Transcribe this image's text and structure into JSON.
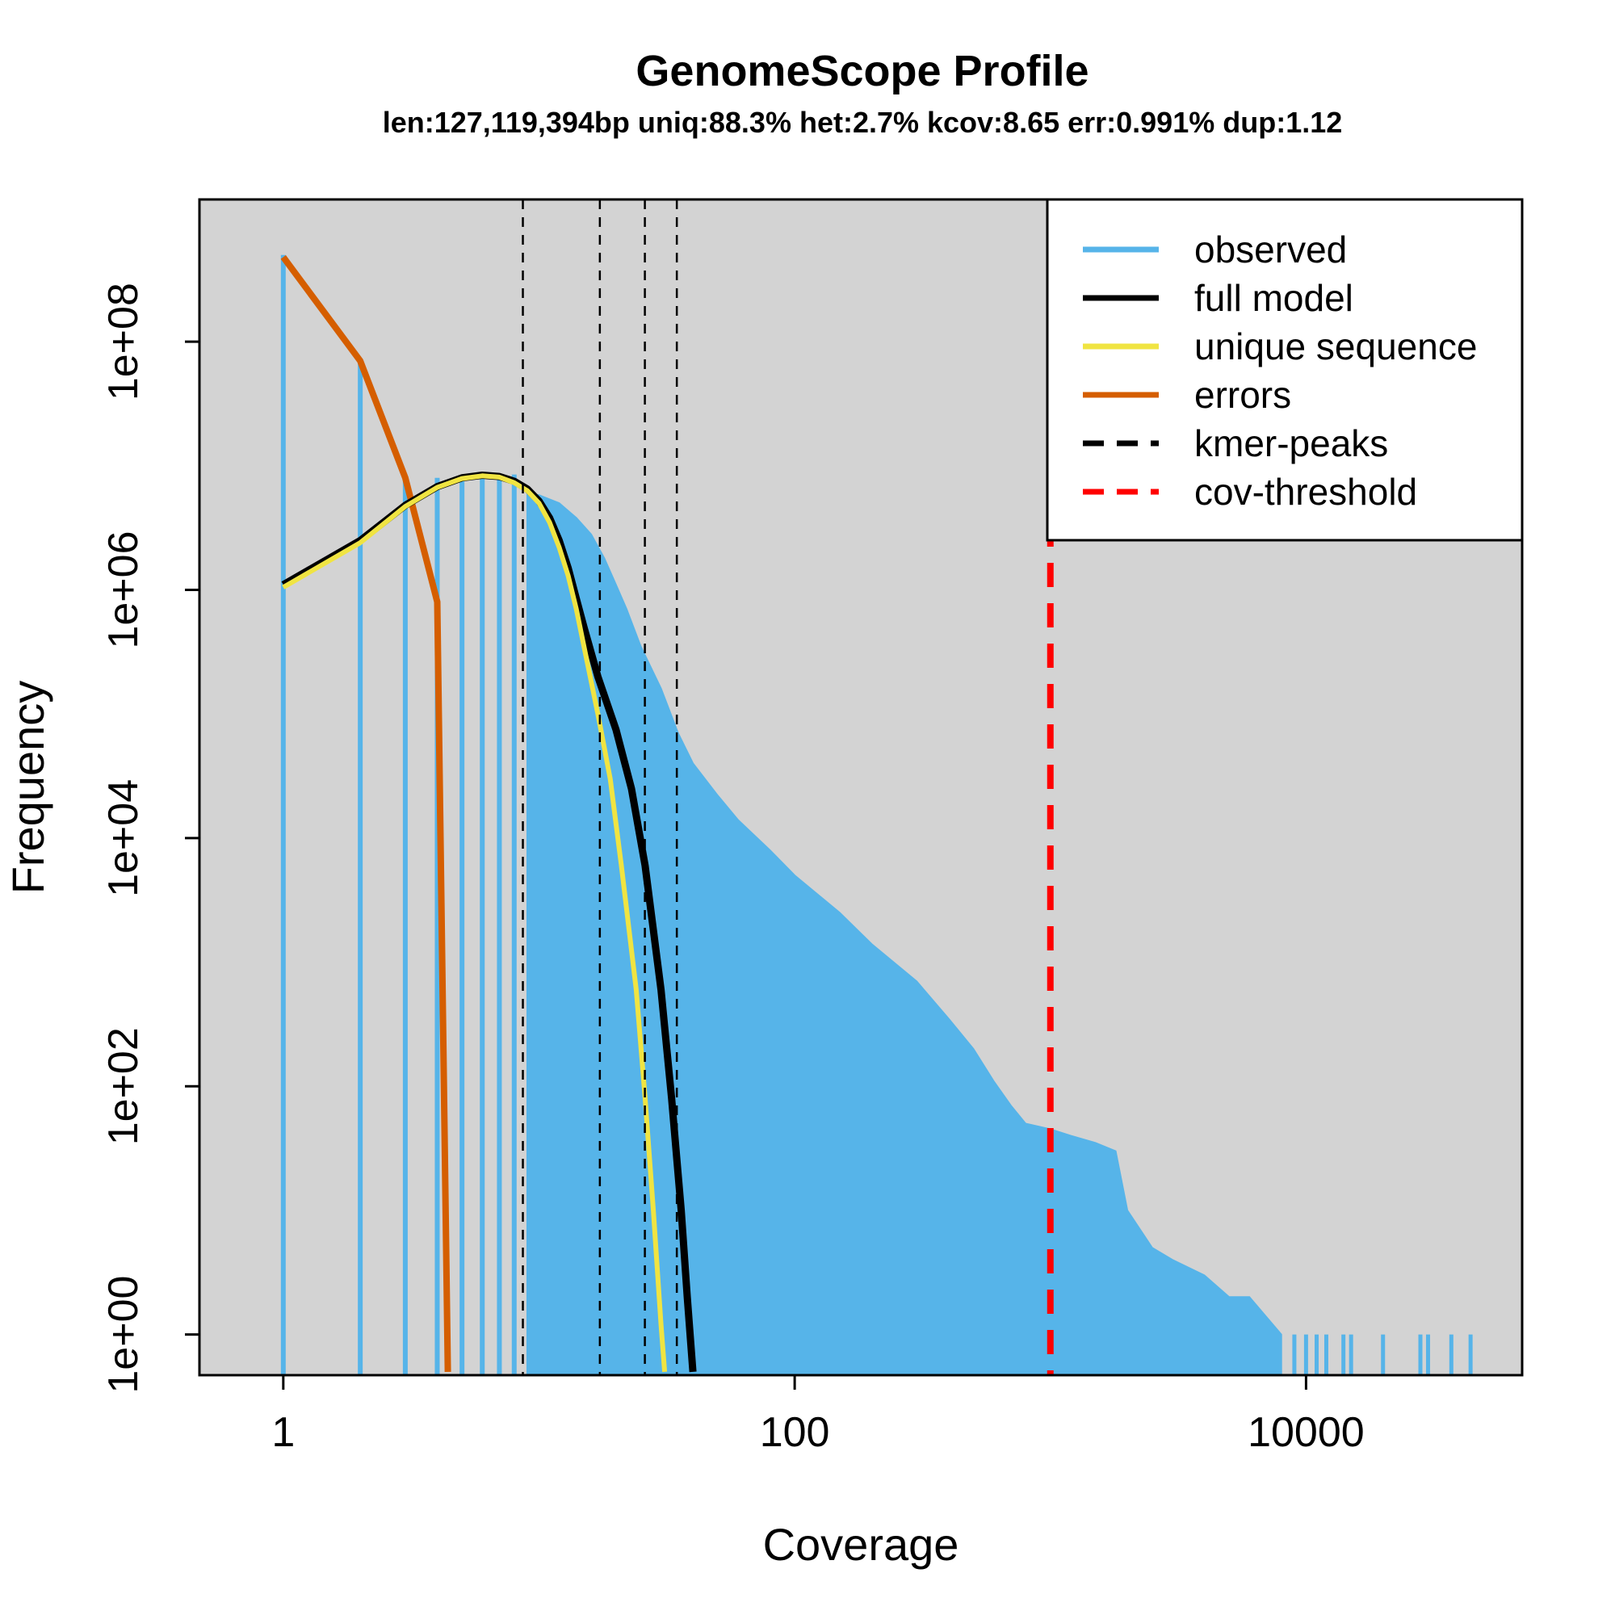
{
  "chart_data": {
    "type": "bar",
    "title": "GenomeScope Profile",
    "subtitle": "len:127,119,394bp uniq:88.3% het:2.7% kcov:8.65 err:0.991% dup:1.12",
    "xlabel": "Coverage",
    "ylabel": "Frequency",
    "x_scale": "log",
    "y_scale": "log",
    "xlim": [
      0.47,
      70000
    ],
    "ylim": [
      0.47,
      1400000000
    ],
    "x_ticks": [
      1,
      100,
      10000
    ],
    "x_tick_labels": [
      "1",
      "100",
      "10000"
    ],
    "y_ticks": [
      1,
      100,
      10000,
      1000000,
      100000000
    ],
    "y_tick_labels": [
      "1e+00",
      "1e+02",
      "1e+04",
      "1e+06",
      "1e+08"
    ],
    "background": "#d3d3d3",
    "grid": false,
    "legend_position": "top-right",
    "colors": {
      "observed": "#56b4e9",
      "full_model": "#000000",
      "unique_sequence": "#f0e442",
      "errors": "#d55e00",
      "kmer_peaks": "#000000",
      "cov_threshold": "#ff0000"
    },
    "legend": [
      {
        "key": "observed",
        "label": "observed",
        "style": "solid"
      },
      {
        "key": "full_model",
        "label": "full model",
        "style": "solid"
      },
      {
        "key": "unique_sequence",
        "label": "unique sequence",
        "style": "solid"
      },
      {
        "key": "errors",
        "label": "errors",
        "style": "solid"
      },
      {
        "key": "kmer_peaks",
        "label": "kmer-peaks",
        "style": "dashed"
      },
      {
        "key": "cov_threshold",
        "label": "cov-threshold",
        "style": "dashed"
      }
    ],
    "observed_profile": [
      [
        9,
        6000000
      ],
      [
        10,
        5800000
      ],
      [
        12,
        5000000
      ],
      [
        14,
        3800000
      ],
      [
        16,
        2800000
      ],
      [
        18,
        1800000
      ],
      [
        20,
        1100000
      ],
      [
        22,
        700000
      ],
      [
        25,
        350000
      ],
      [
        30,
        160000
      ],
      [
        35,
        70000
      ],
      [
        40,
        40000
      ],
      [
        50,
        22000
      ],
      [
        60,
        14000
      ],
      [
        80,
        8000
      ],
      [
        100,
        5000
      ],
      [
        150,
        2500
      ],
      [
        200,
        1400
      ],
      [
        300,
        700
      ],
      [
        400,
        350
      ],
      [
        500,
        200
      ],
      [
        600,
        110
      ],
      [
        700,
        70
      ],
      [
        800,
        50
      ],
      [
        1000,
        45
      ],
      [
        1200,
        40
      ],
      [
        1500,
        35
      ],
      [
        1800,
        30
      ],
      [
        2000,
        10
      ],
      [
        2500,
        5
      ],
      [
        3000,
        4
      ],
      [
        4000,
        3
      ],
      [
        5000,
        2
      ],
      [
        6000,
        2
      ],
      [
        8000,
        1
      ]
    ],
    "observed_low_bars": [
      [
        1,
        500000000
      ],
      [
        2,
        70000000
      ],
      [
        3,
        8000000
      ],
      [
        4,
        8000000
      ],
      [
        5,
        7500000
      ],
      [
        6,
        8000000
      ],
      [
        7,
        8500000
      ],
      [
        8,
        8500000
      ]
    ],
    "observed_sparse_bars": [
      [
        9000,
        1
      ],
      [
        10000,
        1
      ],
      [
        11000,
        1
      ],
      [
        12000,
        1
      ],
      [
        14000,
        1
      ],
      [
        15000,
        1
      ],
      [
        20000,
        1
      ],
      [
        28000,
        1
      ],
      [
        30000,
        1
      ],
      [
        37000,
        1
      ],
      [
        44000,
        1
      ]
    ],
    "full_model": [
      [
        1,
        1100000
      ],
      [
        2,
        2500000
      ],
      [
        3,
        4800000
      ],
      [
        4,
        6800000
      ],
      [
        5,
        8000000
      ],
      [
        6,
        8400000
      ],
      [
        7,
        8200000
      ],
      [
        8,
        7500000
      ],
      [
        9,
        6500000
      ],
      [
        10,
        5200000
      ],
      [
        11,
        3800000
      ],
      [
        12,
        2500000
      ],
      [
        13,
        1500000
      ],
      [
        14,
        850000
      ],
      [
        15,
        500000
      ],
      [
        17,
        200000
      ],
      [
        20,
        75000
      ],
      [
        23,
        25000
      ],
      [
        26,
        6000
      ],
      [
        30,
        600
      ],
      [
        33,
        80
      ],
      [
        36,
        10
      ],
      [
        38,
        2
      ],
      [
        40,
        0.5
      ]
    ],
    "unique_sequence": [
      [
        1,
        1050000
      ],
      [
        2,
        2400000
      ],
      [
        3,
        4700000
      ],
      [
        4,
        6700000
      ],
      [
        5,
        7900000
      ],
      [
        6,
        8300000
      ],
      [
        7,
        8100000
      ],
      [
        8,
        7300000
      ],
      [
        9,
        6300000
      ],
      [
        10,
        5000000
      ],
      [
        11,
        3500000
      ],
      [
        12,
        2200000
      ],
      [
        13,
        1300000
      ],
      [
        14,
        700000
      ],
      [
        15,
        350000
      ],
      [
        17,
        100000
      ],
      [
        19,
        30000
      ],
      [
        21,
        6000
      ],
      [
        24,
        600
      ],
      [
        26,
        80
      ],
      [
        28,
        10
      ],
      [
        30,
        1.2
      ],
      [
        31,
        0.5
      ]
    ],
    "errors": [
      [
        1,
        480000000
      ],
      [
        2,
        70000000
      ],
      [
        3,
        8000000
      ],
      [
        4,
        800000
      ],
      [
        4.4,
        0.5
      ]
    ],
    "kmer_peaks": [
      8.65,
      17.3,
      25.95,
      34.6
    ],
    "cov_threshold": 1000
  }
}
